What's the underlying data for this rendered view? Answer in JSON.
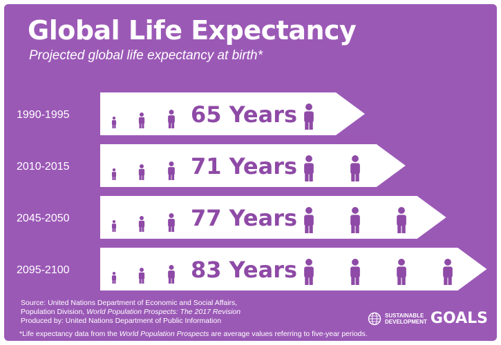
{
  "header": {
    "title": "Global Life Expectancy",
    "subtitle": "Projected global life expectancy at birth*"
  },
  "colors": {
    "background": "#9b59b6",
    "arrow_fill": "#ffffff",
    "value_text": "#8e4aa6",
    "person_icon": "#8e4aa6"
  },
  "chart_data": {
    "type": "bar",
    "title": "Global Life Expectancy",
    "subtitle": "Projected global life expectancy at birth*",
    "categories": [
      "1990-1995",
      "2010-2015",
      "2045-2050",
      "2095-2100"
    ],
    "values": [
      65,
      71,
      77,
      83
    ],
    "value_labels": [
      "65 Years",
      "71 Years",
      "77 Years",
      "83 Years"
    ],
    "adult_icons": [
      1,
      2,
      3,
      4
    ],
    "orientation": "horizontal",
    "grid": false,
    "legend": "none"
  },
  "footer": {
    "source_line1": "Source: United Nations Department of Economic and Social Affairs,",
    "source_line2_prefix": "Population Division, ",
    "source_line2_italic": "World Population Prospects: The 2017 Revision",
    "produced_by": "Produced by: United Nations Department of Public Information",
    "footnote_prefix": "*Life expectancy data from the ",
    "footnote_italic": "World Population Prospects",
    "footnote_suffix": " are average values referring to five-year periods."
  },
  "logo": {
    "line1": "SUSTAINABLE",
    "line2": "DEVELOPMENT",
    "goals": "GOALS",
    "icon": "un-emblem-icon"
  }
}
